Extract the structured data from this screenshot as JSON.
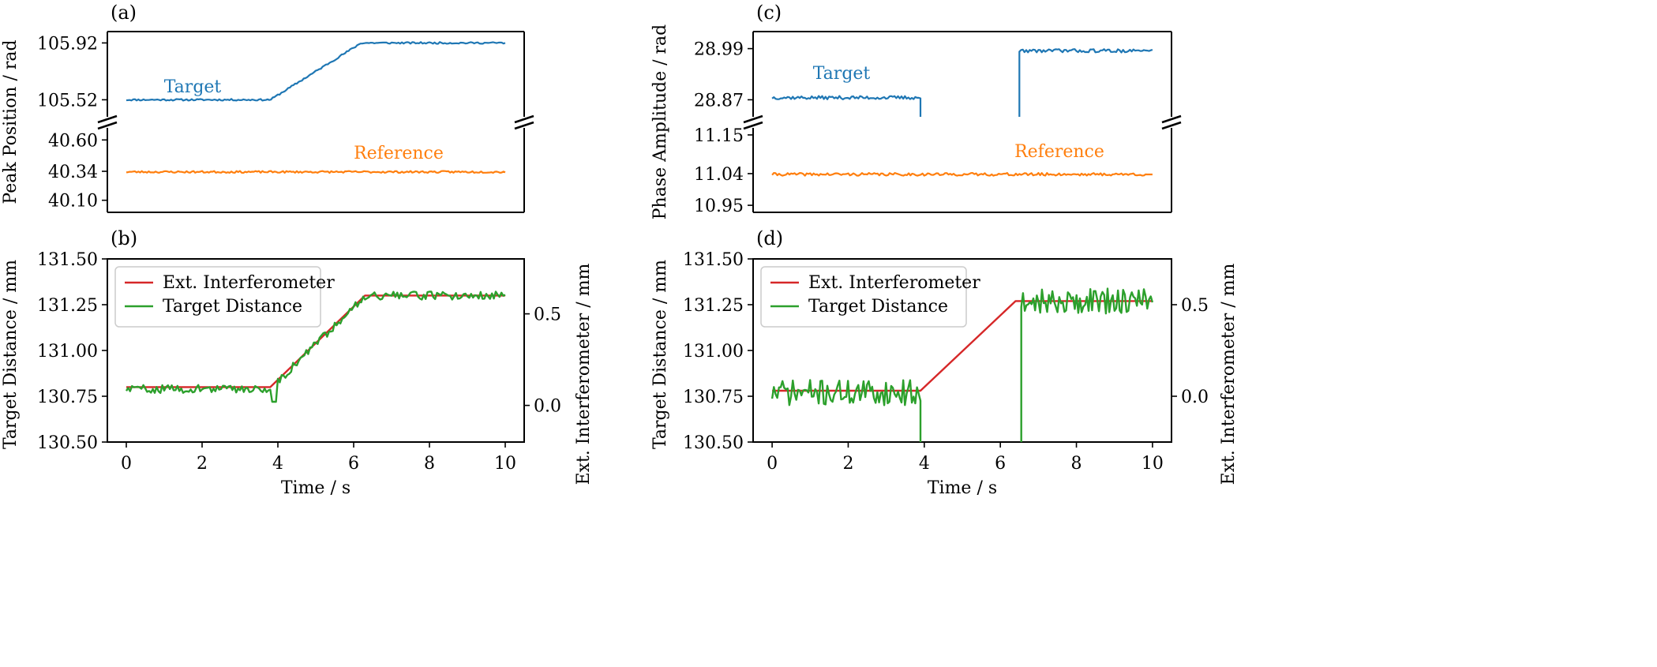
{
  "figure": {
    "x_label_time": "Time / s"
  },
  "chart_data": [
    {
      "id": "a",
      "panel_label": "(a)",
      "type": "line",
      "ylabel": "Peak Position / rad",
      "broken_axis": true,
      "upper": {
        "ylim": [
          105.4,
          106.0
        ],
        "yticks": [
          "105.52",
          "105.92"
        ],
        "ytick_values": [
          105.52,
          105.92
        ],
        "series": [
          {
            "name": "Target",
            "label": "Target",
            "color": "#1f77b4",
            "keypoints": [
              [
                0,
                105.52
              ],
              [
                3.8,
                105.52
              ],
              [
                6.2,
                105.92
              ],
              [
                10,
                105.92
              ]
            ],
            "noise": 0.006,
            "seed": 11
          }
        ]
      },
      "lower": {
        "ylim": [
          40.0,
          40.7
        ],
        "yticks": [
          "40.10",
          "40.34",
          "40.60"
        ],
        "ytick_values": [
          40.1,
          40.34,
          40.6
        ],
        "series": [
          {
            "name": "Reference",
            "label": "Reference",
            "color": "#ff7f0e",
            "keypoints": [
              [
                0,
                40.335
              ],
              [
                10,
                40.335
              ]
            ],
            "noise": 0.008,
            "seed": 23
          }
        ]
      },
      "xlim": [
        -0.5,
        10.5
      ]
    },
    {
      "id": "c",
      "panel_label": "(c)",
      "type": "line",
      "ylabel": "Phase Amplitude / rad",
      "broken_axis": true,
      "upper": {
        "ylim": [
          28.83,
          29.03
        ],
        "yticks": [
          "28.87",
          "28.99"
        ],
        "ytick_values": [
          28.87,
          28.99
        ],
        "series": [
          {
            "name": "Target",
            "label": "Target",
            "color": "#1f77b4",
            "segments": [
              {
                "from": 0,
                "to": 3.9,
                "level": 28.875,
                "drop_to": 28.82
              },
              {
                "from": 6.5,
                "to": 10,
                "level": 28.985,
                "rise_from": 28.82
              }
            ],
            "noise": 0.004,
            "seed": 37
          }
        ]
      },
      "lower": {
        "ylim": [
          10.93,
          11.17
        ],
        "yticks": [
          "10.95",
          "11.04",
          "11.15"
        ],
        "ytick_values": [
          10.95,
          11.04,
          11.15
        ],
        "series": [
          {
            "name": "Reference",
            "label": "Reference",
            "color": "#ff7f0e",
            "keypoints": [
              [
                0,
                11.038
              ],
              [
                10,
                11.038
              ]
            ],
            "noise": 0.004,
            "seed": 41
          }
        ]
      },
      "xlim": [
        -0.5,
        10.5
      ]
    },
    {
      "id": "b",
      "panel_label": "(b)",
      "type": "line",
      "xlabel": "Time / s",
      "ylabel": "Target Distance / mm",
      "ylabel_right": "Ext. Interferometer / mm",
      "xlim": [
        -0.5,
        10.5
      ],
      "xticks": [
        0,
        2,
        4,
        6,
        8,
        10
      ],
      "ylim": [
        130.5,
        131.5
      ],
      "yticks": [
        "130.50",
        "130.75",
        "131.00",
        "131.25",
        "131.50"
      ],
      "ytick_values": [
        130.5,
        130.75,
        131.0,
        131.25,
        131.5
      ],
      "ylim_right": [
        -0.2,
        0.8
      ],
      "yticks_right": [
        "0.0",
        "0.5"
      ],
      "ytick_values_right": [
        0.0,
        0.5
      ],
      "legend": {
        "position": "upper-left",
        "entries": [
          "Ext. Interferometer",
          "Target Distance"
        ]
      },
      "series": [
        {
          "name": "Ext. Interferometer",
          "color": "#d62728",
          "points": [
            [
              0,
              130.8
            ],
            [
              3.8,
              130.8
            ],
            [
              6.3,
              131.3
            ],
            [
              10,
              131.3
            ]
          ]
        },
        {
          "name": "Target Distance",
          "color": "#2ca02c",
          "keypoints": [
            [
              0,
              130.79
            ],
            [
              3.8,
              130.79
            ],
            [
              6.3,
              131.3
            ],
            [
              10,
              131.3
            ]
          ],
          "noise": 0.022,
          "seed": 59,
          "dip_at": [
            3.9,
            130.72
          ]
        }
      ]
    },
    {
      "id": "d",
      "panel_label": "(d)",
      "type": "line",
      "xlabel": "Time / s",
      "ylabel": "Target Distance / mm",
      "ylabel_right": "Ext. Interferometer / mm",
      "xlim": [
        -0.5,
        10.5
      ],
      "xticks": [
        0,
        2,
        4,
        6,
        8,
        10
      ],
      "ylim": [
        130.5,
        131.5
      ],
      "yticks": [
        "130.50",
        "130.75",
        "131.00",
        "131.25",
        "131.50"
      ],
      "ytick_values": [
        130.5,
        130.75,
        131.0,
        131.25,
        131.5
      ],
      "ylim_right": [
        -0.25,
        0.75
      ],
      "yticks_right": [
        "0.0",
        "0.5"
      ],
      "ytick_values_right": [
        0.0,
        0.5
      ],
      "legend": {
        "position": "upper-left",
        "entries": [
          "Ext. Interferometer",
          "Target Distance"
        ]
      },
      "series": [
        {
          "name": "Ext. Interferometer",
          "color": "#d62728",
          "points": [
            [
              0,
              130.78
            ],
            [
              3.9,
              130.78
            ],
            [
              6.4,
              131.27
            ],
            [
              10,
              131.27
            ]
          ]
        },
        {
          "name": "Target Distance",
          "color": "#2ca02c",
          "segments": [
            {
              "from": 0,
              "to": 3.9,
              "level": 130.77,
              "drop_to": 130.45
            },
            {
              "from": 6.55,
              "to": 10,
              "level": 131.27,
              "rise_from": 130.45
            }
          ],
          "noise": 0.07,
          "seed": 71
        }
      ]
    }
  ]
}
